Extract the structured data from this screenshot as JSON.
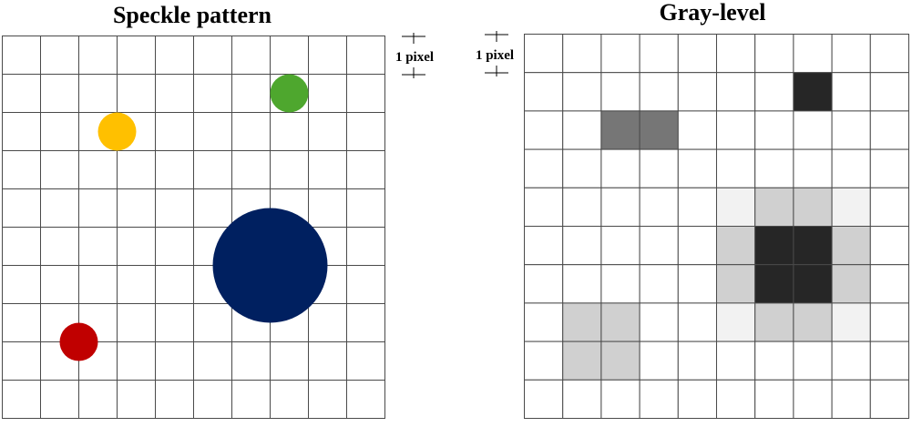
{
  "left_panel": {
    "title": "Speckle pattern",
    "scale_label": "1 pixel",
    "grid": {
      "cols": 10,
      "rows": 10
    },
    "speckles": [
      {
        "color": "yellow",
        "fill": "#FFC000",
        "col": 3.0,
        "row": 2.5,
        "diameter": 1.0
      },
      {
        "color": "green",
        "fill": "#4EA72E",
        "col": 7.5,
        "row": 1.5,
        "diameter": 1.0
      },
      {
        "color": "navy",
        "fill": "#002060",
        "col": 7.0,
        "row": 6.0,
        "diameter": 3.0
      },
      {
        "color": "red",
        "fill": "#C00000",
        "col": 2.0,
        "row": 8.0,
        "diameter": 1.0
      }
    ]
  },
  "right_panel": {
    "title": "Gray-level",
    "scale_label": "1 pixel",
    "grid": {
      "cols": 10,
      "rows": 10
    },
    "gray_cells": [
      {
        "col": 7,
        "row": 1,
        "fill": "#262626"
      },
      {
        "col": 2,
        "row": 2,
        "fill": "#767676"
      },
      {
        "col": 3,
        "row": 2,
        "fill": "#767676"
      },
      {
        "col": 5,
        "row": 4,
        "fill": "#F2F2F2"
      },
      {
        "col": 6,
        "row": 4,
        "fill": "#D0D0D0"
      },
      {
        "col": 7,
        "row": 4,
        "fill": "#D0D0D0"
      },
      {
        "col": 8,
        "row": 4,
        "fill": "#F2F2F2"
      },
      {
        "col": 5,
        "row": 5,
        "fill": "#D0D0D0"
      },
      {
        "col": 6,
        "row": 5,
        "fill": "#262626"
      },
      {
        "col": 7,
        "row": 5,
        "fill": "#262626"
      },
      {
        "col": 8,
        "row": 5,
        "fill": "#D0D0D0"
      },
      {
        "col": 5,
        "row": 6,
        "fill": "#D0D0D0"
      },
      {
        "col": 6,
        "row": 6,
        "fill": "#262626"
      },
      {
        "col": 7,
        "row": 6,
        "fill": "#262626"
      },
      {
        "col": 8,
        "row": 6,
        "fill": "#D0D0D0"
      },
      {
        "col": 5,
        "row": 7,
        "fill": "#F2F2F2"
      },
      {
        "col": 6,
        "row": 7,
        "fill": "#D0D0D0"
      },
      {
        "col": 7,
        "row": 7,
        "fill": "#D0D0D0"
      },
      {
        "col": 8,
        "row": 7,
        "fill": "#F2F2F2"
      },
      {
        "col": 1,
        "row": 7,
        "fill": "#D0D0D0"
      },
      {
        "col": 2,
        "row": 7,
        "fill": "#D0D0D0"
      },
      {
        "col": 1,
        "row": 8,
        "fill": "#D0D0D0"
      },
      {
        "col": 2,
        "row": 8,
        "fill": "#D0D0D0"
      }
    ]
  },
  "colors": {
    "grid_line": "#4a4a4a",
    "background": "#FFFFFF"
  }
}
